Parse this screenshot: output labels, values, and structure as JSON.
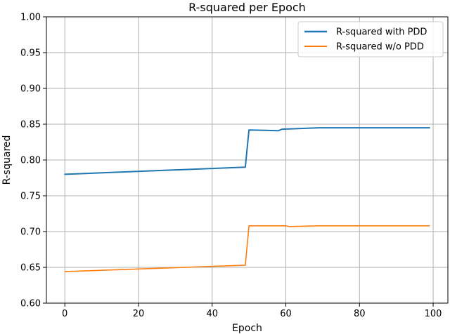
{
  "chart_data": {
    "type": "line",
    "title": "R-squared per Epoch",
    "xlabel": "Epoch",
    "ylabel": "R-squared",
    "xlim": [
      -5,
      104
    ],
    "ylim": [
      0.6,
      1.0
    ],
    "x_ticks": [
      0,
      20,
      40,
      60,
      80,
      100
    ],
    "y_ticks": [
      0.6,
      0.65,
      0.7,
      0.75,
      0.8,
      0.85,
      0.9,
      0.95,
      1.0
    ],
    "y_tick_labels": [
      "0.60",
      "0.65",
      "0.70",
      "0.75",
      "0.80",
      "0.85",
      "0.90",
      "0.95",
      "1.00"
    ],
    "grid": true,
    "legend_position": "top-right",
    "series": [
      {
        "name": "R-squared with PDD",
        "color": "#1f77b4",
        "x": [
          0,
          49,
          50,
          58,
          59,
          69,
          99
        ],
        "y": [
          0.78,
          0.79,
          0.842,
          0.841,
          0.843,
          0.845,
          0.845
        ]
      },
      {
        "name": "R-squared w/o PDD",
        "color": "#ff7f0e",
        "x": [
          0,
          49,
          50,
          60,
          61,
          69,
          99
        ],
        "y": [
          0.644,
          0.653,
          0.708,
          0.708,
          0.707,
          0.708,
          0.708
        ]
      }
    ]
  }
}
